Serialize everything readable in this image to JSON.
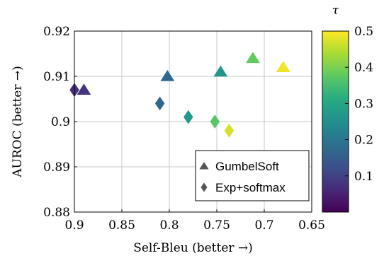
{
  "chart_data": {
    "type": "scatter",
    "title": "",
    "xlabel": "Self-Bleu (better →)",
    "ylabel": "AUROC (better →)",
    "x_reversed": true,
    "xlim": [
      0.9,
      0.65
    ],
    "ylim": [
      0.88,
      0.92
    ],
    "xticks": [
      "0.9",
      "0.85",
      "0.8",
      "0.75",
      "0.7",
      "0.65"
    ],
    "yticks": [
      "0.88",
      "0.89",
      "0.9",
      "0.91",
      "0.92"
    ],
    "x_tick_values": [
      0.9,
      0.85,
      0.8,
      0.75,
      0.7,
      0.65
    ],
    "y_tick_values": [
      0.88,
      0.89,
      0.9,
      0.91,
      0.92
    ],
    "grid": true,
    "legend_position": "bottom-right",
    "colorbar": {
      "label": "τ",
      "colormap": "viridis",
      "range": [
        0,
        0.5
      ],
      "ticks": [
        "0.1",
        "0.2",
        "0.3",
        "0.4",
        "0.5"
      ],
      "tick_values": [
        0.1,
        0.2,
        0.3,
        0.4,
        0.5
      ]
    },
    "series": [
      {
        "name": "GumbelSoft",
        "marker": "triangle",
        "points": [
          {
            "x": 0.89,
            "y": 0.907,
            "tau": 0.08
          },
          {
            "x": 0.802,
            "y": 0.91,
            "tau": 0.17
          },
          {
            "x": 0.746,
            "y": 0.911,
            "tau": 0.26
          },
          {
            "x": 0.712,
            "y": 0.914,
            "tau": 0.38
          },
          {
            "x": 0.68,
            "y": 0.912,
            "tau": 0.49
          }
        ]
      },
      {
        "name": "Exp+softmax",
        "marker": "diamond",
        "points": [
          {
            "x": 0.9,
            "y": 0.907,
            "tau": 0.07
          },
          {
            "x": 0.81,
            "y": 0.904,
            "tau": 0.17
          },
          {
            "x": 0.78,
            "y": 0.901,
            "tau": 0.27
          },
          {
            "x": 0.752,
            "y": 0.9,
            "tau": 0.37
          },
          {
            "x": 0.737,
            "y": 0.898,
            "tau": 0.47
          }
        ]
      }
    ]
  }
}
